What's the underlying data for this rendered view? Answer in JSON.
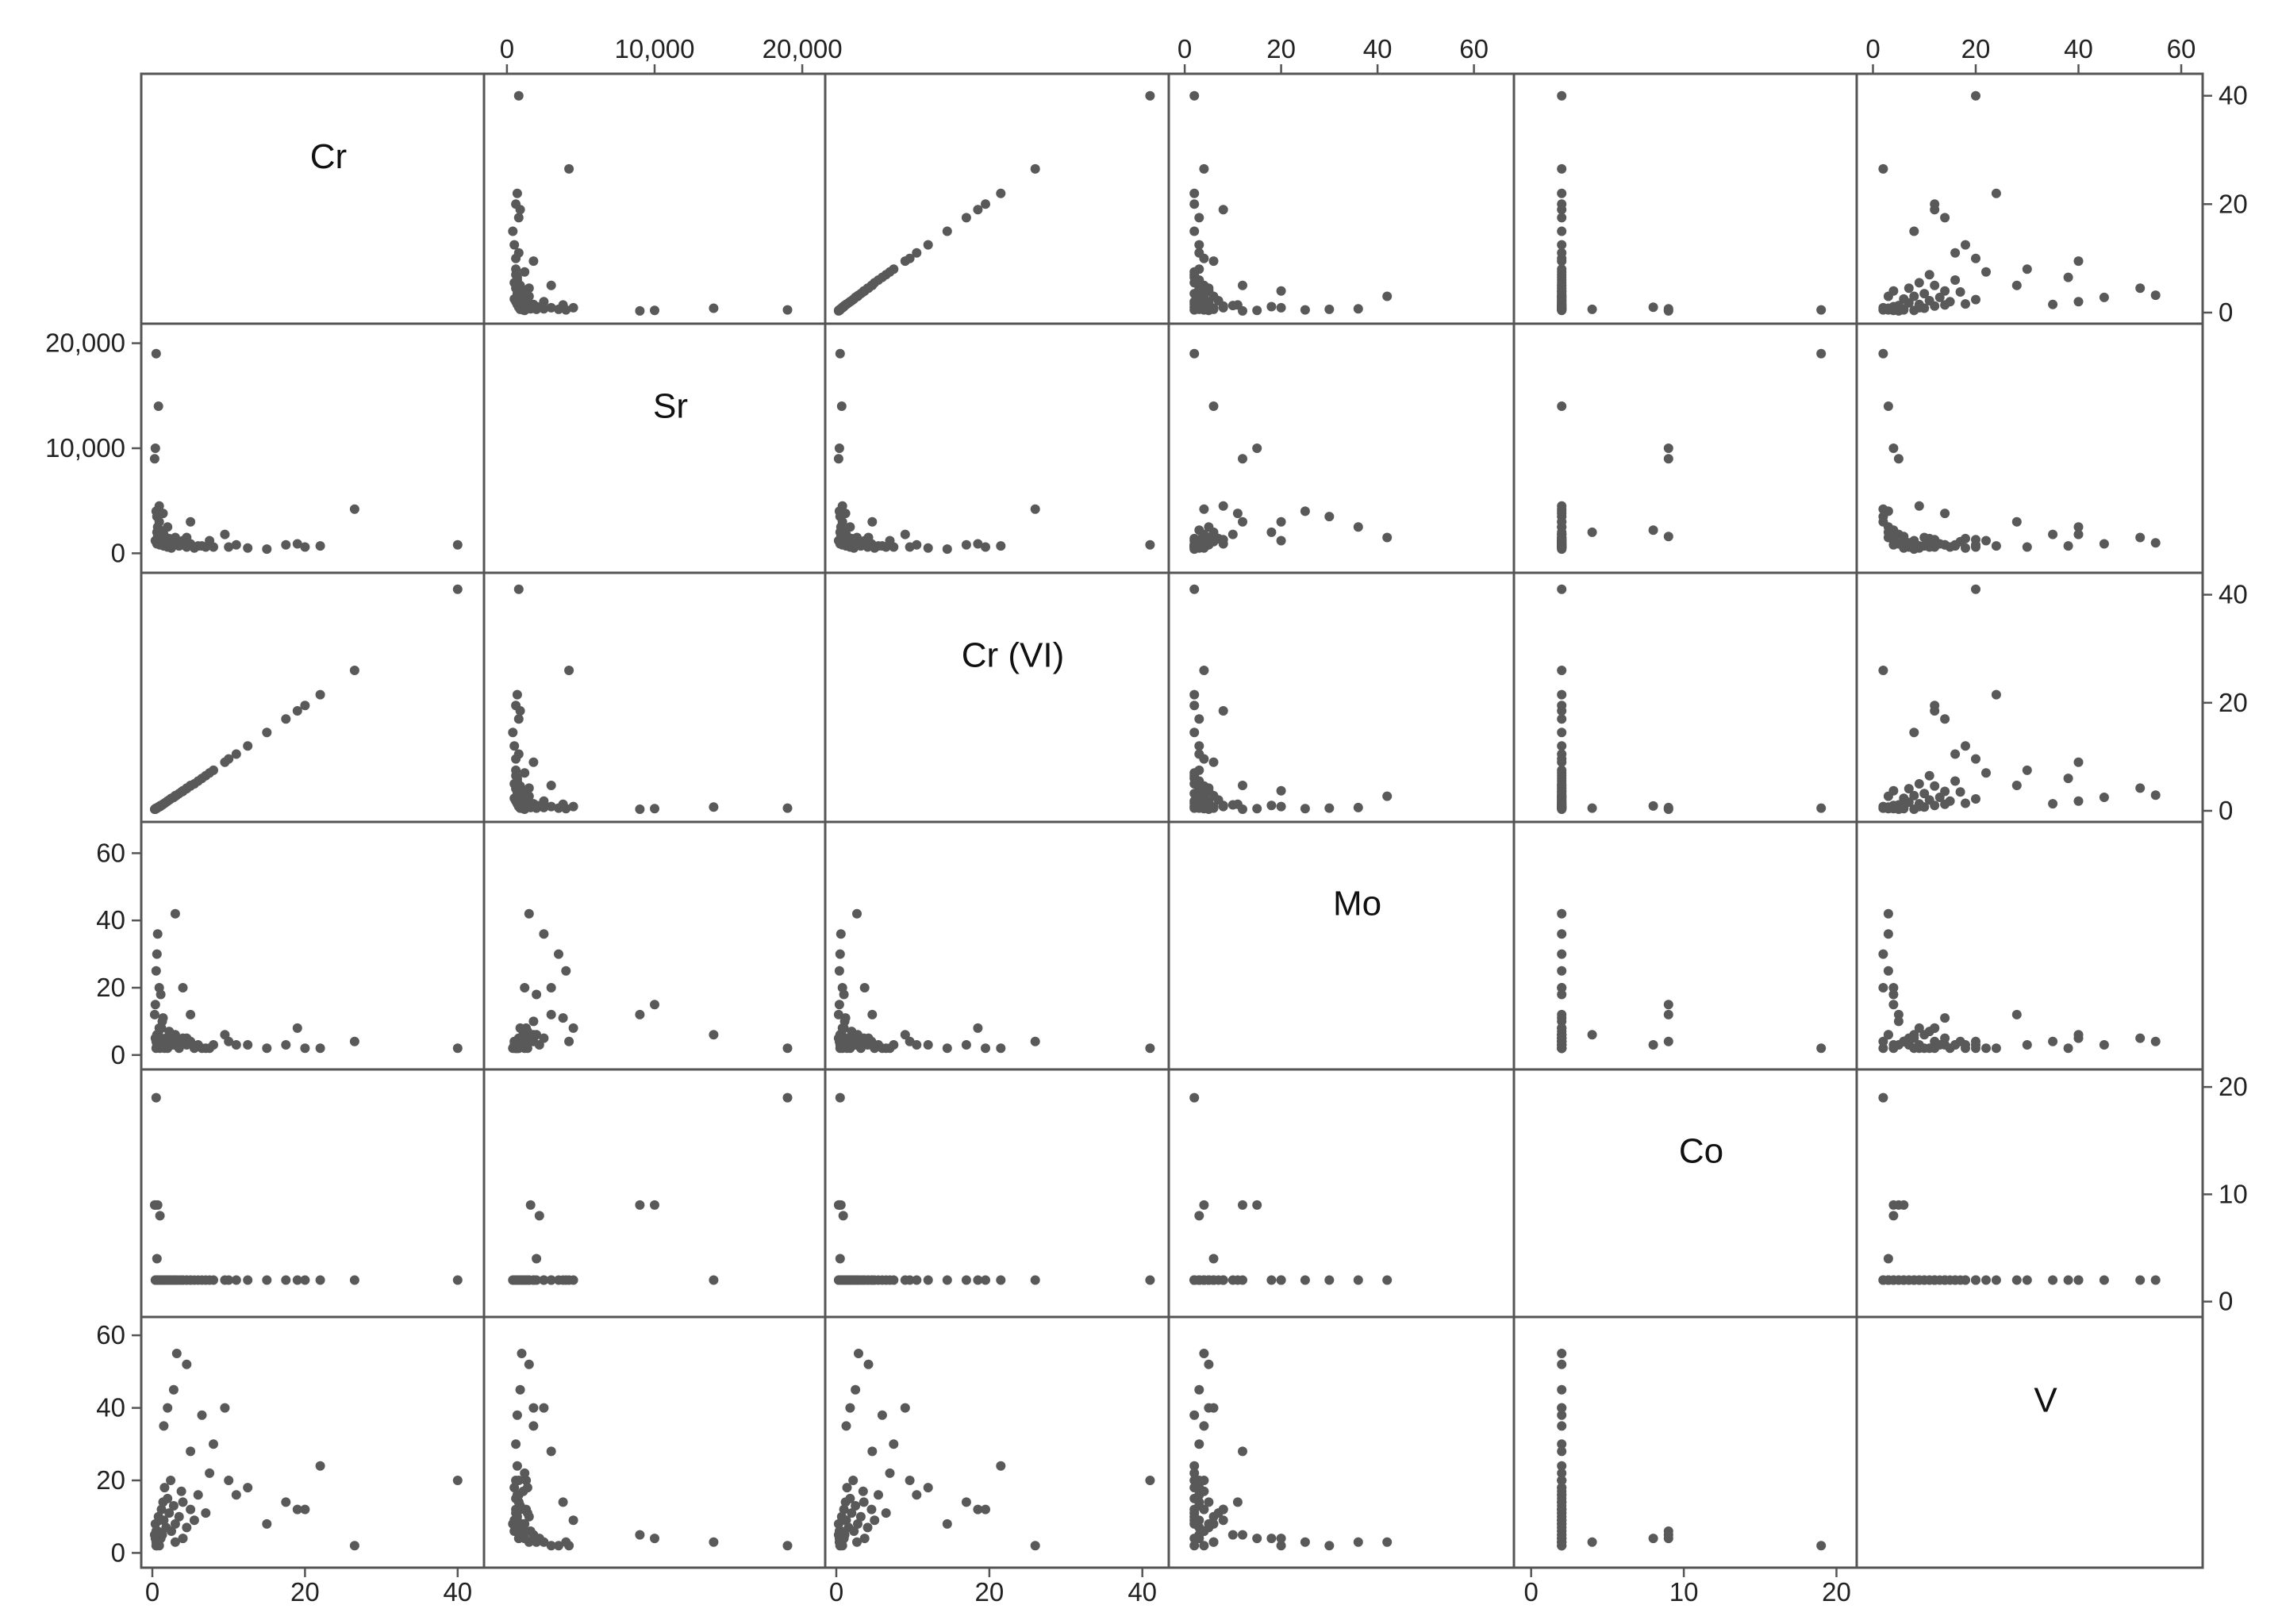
{
  "chart_data": {
    "type": "scatter",
    "layout": "scatterplot-matrix",
    "variables": [
      "Cr",
      "Sr",
      "Cr (VI)",
      "Mo",
      "Co",
      "V"
    ],
    "ranges": {
      "Cr": [
        0,
        42
      ],
      "Sr": [
        -800,
        20800
      ],
      "Cr (VI)": [
        0,
        42
      ],
      "Mo": [
        -1,
        66
      ],
      "Co": [
        -0.4,
        20.6
      ],
      "V": [
        -1,
        62
      ]
    },
    "axis_ticks": {
      "Cr": [
        "0",
        "20",
        "40"
      ],
      "Sr": [
        "0",
        "10,000",
        "20,000"
      ],
      "Cr (VI)": [
        "0",
        "20",
        "40"
      ],
      "Mo": [
        "0",
        "20",
        "40",
        "60"
      ],
      "Co": [
        "0",
        "10",
        "20"
      ],
      "V": [
        "0",
        "20",
        "40",
        "60"
      ]
    },
    "tick_values": {
      "Cr": [
        0,
        20,
        40
      ],
      "Sr": [
        0,
        10000,
        20000
      ],
      "Cr (VI)": [
        0,
        20,
        40
      ],
      "Mo": [
        0,
        20,
        40,
        60
      ],
      "Co": [
        0,
        10,
        20
      ],
      "V": [
        0,
        20,
        40,
        60
      ]
    },
    "points": [
      [
        0.4,
        1200,
        0.3,
        5,
        2,
        8
      ],
      [
        0.5,
        1100,
        0.4,
        4,
        2,
        6
      ],
      [
        0.6,
        900,
        0.5,
        3,
        2,
        5
      ],
      [
        0.8,
        1500,
        0.7,
        6,
        2,
        10
      ],
      [
        1.0,
        800,
        0.8,
        2,
        2,
        4
      ],
      [
        1.2,
        1300,
        1.0,
        8,
        2,
        12
      ],
      [
        1.5,
        700,
        1.3,
        3,
        2,
        9
      ],
      [
        1.8,
        1000,
        1.6,
        5,
        2,
        7
      ],
      [
        2.0,
        600,
        1.8,
        2,
        2,
        15
      ],
      [
        2.2,
        1400,
        2.0,
        7,
        2,
        11
      ],
      [
        2.5,
        500,
        2.3,
        4,
        2,
        6
      ],
      [
        2.8,
        900,
        2.5,
        3,
        2,
        13
      ],
      [
        3.0,
        1100,
        2.8,
        6,
        2,
        8
      ],
      [
        3.5,
        700,
        3.2,
        2,
        2,
        10
      ],
      [
        4.0,
        800,
        3.6,
        5,
        2,
        14
      ],
      [
        4.5,
        600,
        4.1,
        3,
        2,
        7
      ],
      [
        5.0,
        900,
        4.6,
        4,
        2,
        12
      ],
      [
        5.5,
        500,
        5.0,
        2,
        2,
        9
      ],
      [
        6.0,
        700,
        5.5,
        3,
        2,
        16
      ],
      [
        7.0,
        600,
        6.5,
        2,
        2,
        11
      ],
      [
        0.3,
        9000,
        0.3,
        12,
        9,
        5
      ],
      [
        0.4,
        10000,
        0.4,
        15,
        9,
        4
      ],
      [
        0.5,
        4000,
        0.4,
        25,
        2,
        3
      ],
      [
        0.6,
        3500,
        0.5,
        30,
        2,
        2
      ],
      [
        0.7,
        2500,
        0.6,
        36,
        2,
        3
      ],
      [
        0.9,
        3000,
        0.8,
        20,
        2,
        2
      ],
      [
        1.1,
        2000,
        1.0,
        18,
        2,
        4
      ],
      [
        1.3,
        1800,
        1.1,
        10,
        2,
        5
      ],
      [
        0.8,
        14000,
        0.7,
        6,
        2,
        3
      ],
      [
        0.5,
        19000,
        0.5,
        2,
        19,
        2
      ],
      [
        3.0,
        1500,
        2.7,
        42,
        2,
        3
      ],
      [
        4.0,
        1200,
        3.7,
        20,
        2,
        4
      ],
      [
        9.5,
        1800,
        9.0,
        6,
        2,
        40
      ],
      [
        10.0,
        600,
        9.6,
        4,
        2,
        20
      ],
      [
        12.5,
        500,
        12.0,
        3,
        2,
        18
      ],
      [
        15.0,
        400,
        14.5,
        2,
        2,
        8
      ],
      [
        17.5,
        800,
        17.0,
        3,
        2,
        14
      ],
      [
        19.0,
        900,
        18.5,
        8,
        2,
        12
      ],
      [
        22.0,
        700,
        21.5,
        2,
        2,
        24
      ],
      [
        26.5,
        4200,
        26.0,
        4,
        2,
        2
      ],
      [
        3.2,
        1000,
        2.9,
        4,
        2,
        55
      ],
      [
        4.5,
        1500,
        4.2,
        5,
        2,
        52
      ],
      [
        2.8,
        900,
        2.5,
        3,
        2,
        45
      ],
      [
        6.5,
        700,
        6.0,
        2,
        2,
        38
      ],
      [
        8.0,
        600,
        7.5,
        3,
        2,
        30
      ],
      [
        2.0,
        2500,
        1.8,
        5,
        2,
        40
      ],
      [
        1.5,
        1800,
        1.3,
        4,
        2,
        35
      ],
      [
        5.0,
        3000,
        4.7,
        12,
        2,
        28
      ],
      [
        7.5,
        1200,
        7.0,
        2,
        2,
        22
      ],
      [
        11.0,
        800,
        10.5,
        3,
        2,
        16
      ],
      [
        20.0,
        600,
        19.5,
        2,
        2,
        12
      ],
      [
        40.0,
        800,
        41.0,
        2,
        2,
        20
      ],
      [
        0.6,
        2000,
        0.5,
        6,
        4,
        3
      ],
      [
        1.0,
        2200,
        0.9,
        3,
        8,
        4
      ],
      [
        0.7,
        1600,
        0.6,
        4,
        9,
        6
      ],
      [
        1.6,
        1400,
        1.4,
        2,
        2,
        18
      ],
      [
        2.4,
        1300,
        2.2,
        3,
        2,
        20
      ],
      [
        3.8,
        1100,
        3.5,
        4,
        2,
        17
      ],
      [
        0.9,
        4500,
        0.8,
        8,
        2,
        9
      ],
      [
        1.4,
        3800,
        1.2,
        11,
        2,
        14
      ]
    ]
  }
}
